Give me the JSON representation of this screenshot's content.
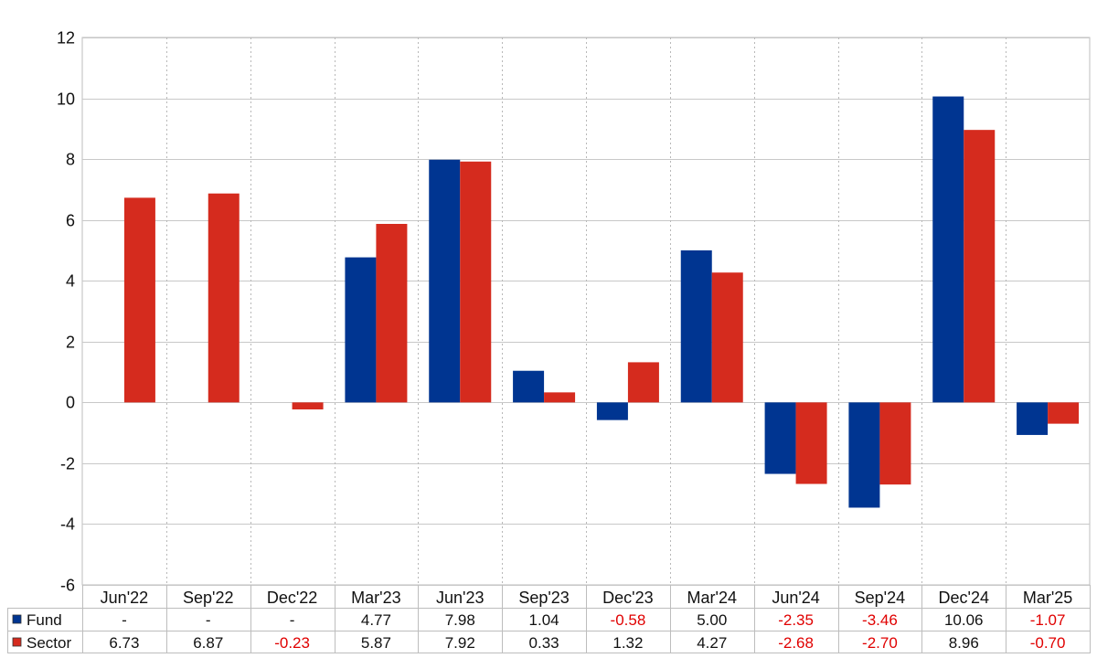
{
  "chart_data": {
    "type": "bar",
    "categories": [
      "Jun'22",
      "Sep'22",
      "Dec'22",
      "Mar'23",
      "Jun'23",
      "Sep'23",
      "Dec'23",
      "Mar'24",
      "Jun'24",
      "Sep'24",
      "Dec'24",
      "Mar'25"
    ],
    "ylim": [
      -6,
      12
    ],
    "yticks": [
      12,
      10,
      8,
      6,
      4,
      2,
      0,
      -2,
      -4,
      -6
    ],
    "grid": true,
    "series": [
      {
        "name": "Fund",
        "color": "#003591",
        "values": [
          null,
          null,
          null,
          4.77,
          7.98,
          1.04,
          -0.58,
          5.0,
          -2.35,
          -3.46,
          10.06,
          -1.07
        ],
        "labels": [
          "-",
          "-",
          "-",
          "4.77",
          "7.98",
          "1.04",
          "-0.58",
          "5.00",
          "-2.35",
          "-3.46",
          "10.06",
          "-1.07"
        ]
      },
      {
        "name": "Sector",
        "color": "#d52b1e",
        "values": [
          6.73,
          6.87,
          -0.23,
          5.87,
          7.92,
          0.33,
          1.32,
          4.27,
          -2.68,
          -2.7,
          8.96,
          -0.7
        ],
        "labels": [
          "6.73",
          "6.87",
          "-0.23",
          "5.87",
          "7.92",
          "0.33",
          "1.32",
          "4.27",
          "-2.68",
          "-2.70",
          "8.96",
          "-0.70"
        ]
      }
    ],
    "negative_label_color": "#e00000"
  }
}
